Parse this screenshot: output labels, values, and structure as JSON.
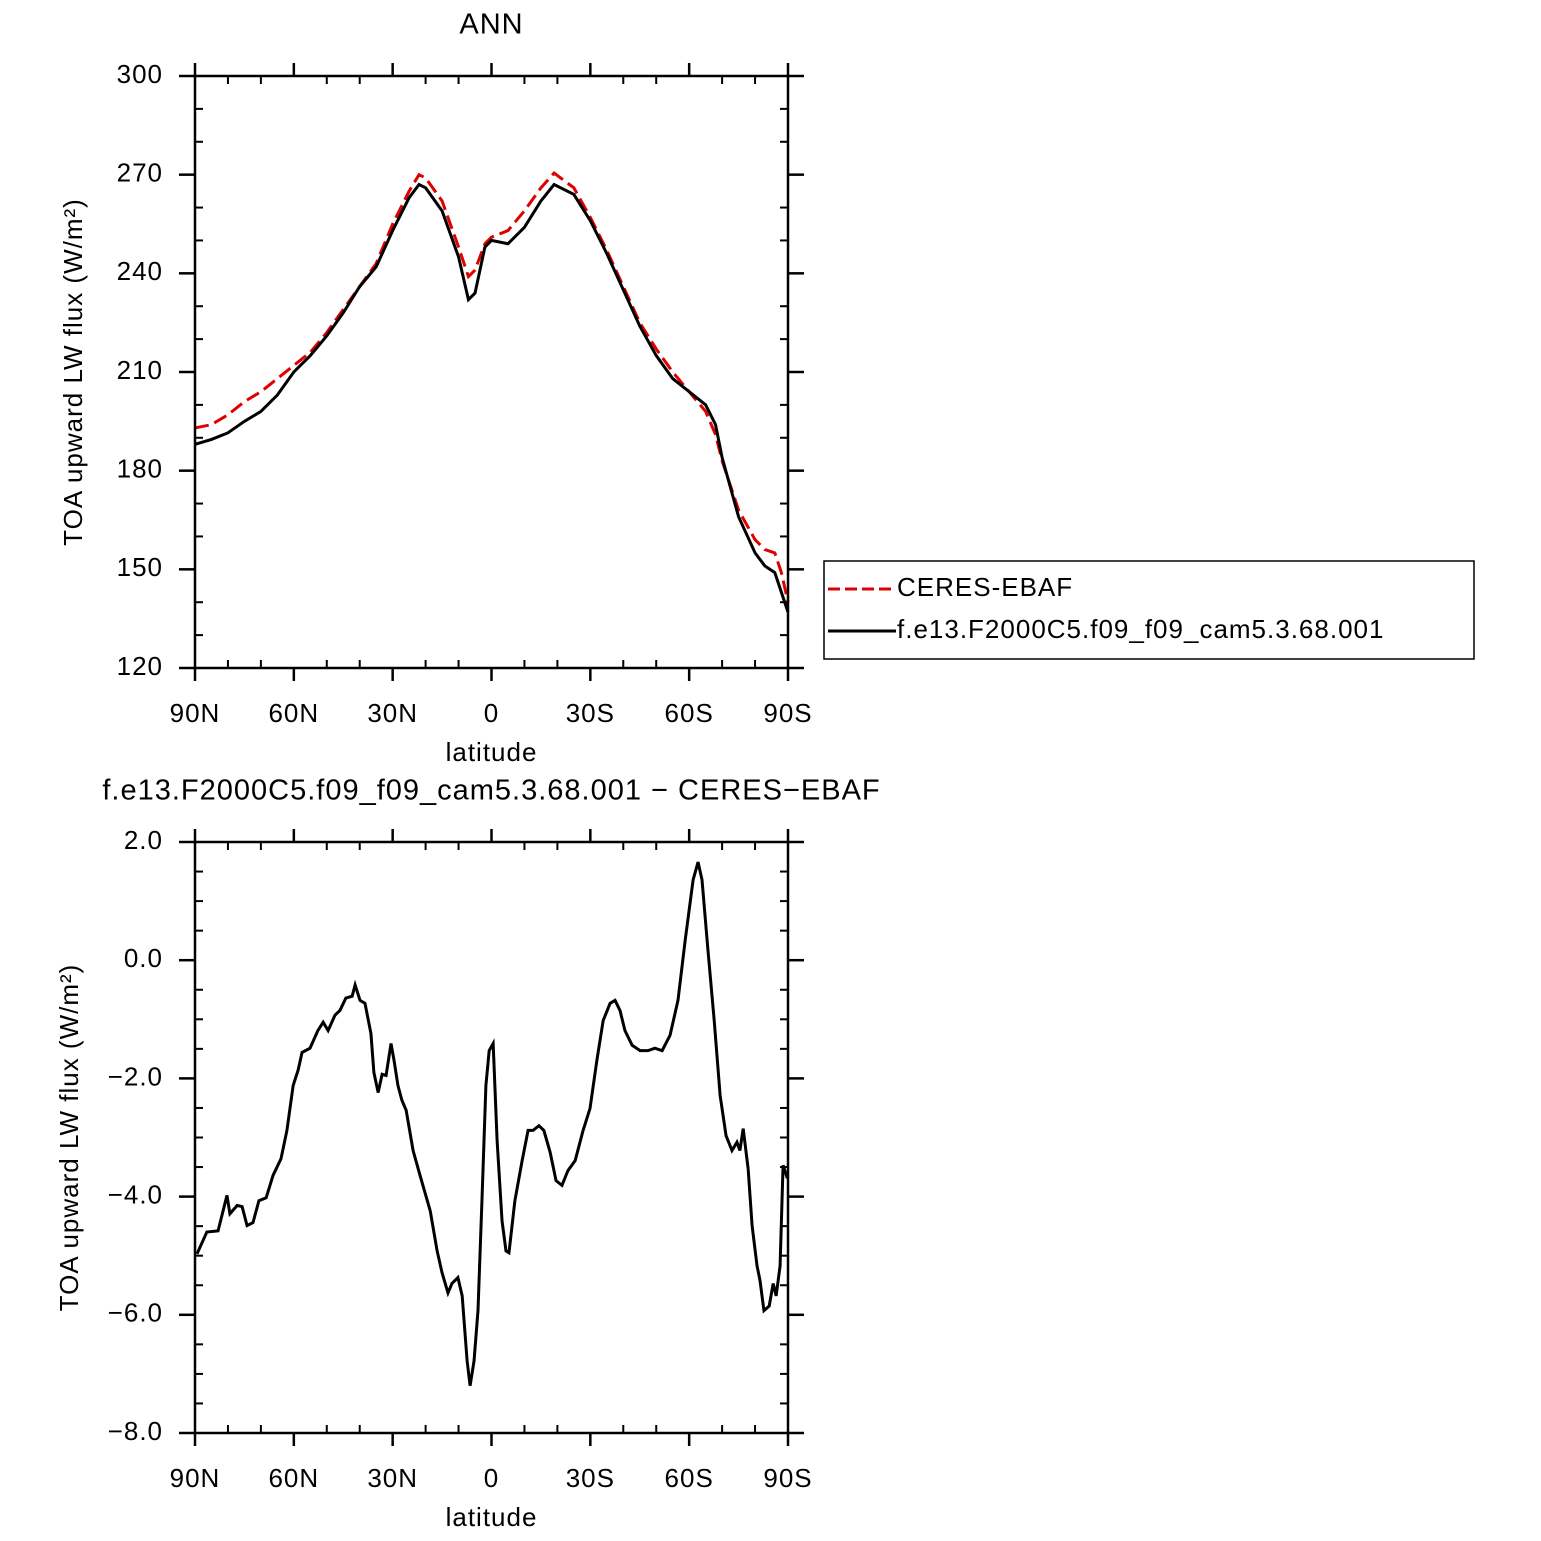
{
  "chart_data": [
    {
      "type": "line",
      "title": "ANN",
      "x_label": "latitude",
      "y_label": "TOA upward LW flux (W/m²)",
      "x": [
        90,
        85,
        80,
        75,
        70,
        65,
        60,
        55,
        50,
        45,
        40,
        35,
        30,
        25,
        22,
        20,
        15,
        10,
        7,
        5,
        2,
        0,
        -5,
        -10,
        -15,
        -19,
        -25,
        -30,
        -35,
        -40,
        -45,
        -50,
        -55,
        -60,
        -65,
        -68,
        -70,
        -75,
        -80,
        -83,
        -86,
        -88,
        -90
      ],
      "series": [
        {
          "name": "CERES-EBAF",
          "color": "#e00000",
          "line_style": "dashed",
          "values": [
            193,
            194,
            197,
            201,
            204,
            208,
            212,
            216,
            222,
            229,
            236,
            243,
            255,
            265,
            270,
            269,
            262,
            248,
            239,
            241,
            249,
            251,
            253,
            259,
            266,
            270.5,
            266,
            257,
            247,
            236,
            225,
            217,
            210,
            204,
            198,
            191,
            183,
            168,
            159,
            156,
            155,
            149,
            140
          ]
        },
        {
          "name": "f.e13.F2000C5.f09_f09_cam5.3.68.001",
          "color": "#000000",
          "line_style": "solid",
          "values": [
            188,
            189.5,
            191.5,
            195,
            198,
            203,
            210,
            215,
            221,
            228,
            236,
            242,
            253,
            263,
            267,
            266,
            259,
            245,
            232,
            234,
            248,
            250,
            249,
            254,
            262,
            267,
            264,
            256,
            246,
            235,
            224,
            215,
            208,
            204,
            200,
            194,
            184,
            166,
            155,
            151,
            149,
            143,
            137
          ]
        }
      ],
      "xlim": [
        90,
        -90
      ],
      "ylim": [
        120,
        300
      ],
      "xticks": [
        {
          "value": 90,
          "label": "90N"
        },
        {
          "value": 60,
          "label": "60N"
        },
        {
          "value": 30,
          "label": "30N"
        },
        0,
        {
          "value": -30,
          "label": "30S"
        },
        {
          "value": -60,
          "label": "60S"
        },
        {
          "value": -90,
          "label": "90S"
        }
      ],
      "xminorticks": [
        80,
        70,
        50,
        40,
        20,
        10,
        -10,
        -20,
        -40,
        -50,
        -70,
        -80
      ],
      "yticks": [
        120,
        150,
        180,
        210,
        240,
        270,
        300
      ],
      "yminorticks": [
        130,
        140,
        160,
        170,
        190,
        200,
        220,
        230,
        250,
        260,
        280,
        290
      ],
      "legend": "outside-right"
    },
    {
      "type": "line",
      "title": "f.e13.F2000C5.f09_f09_cam5.3.68.001 − CERES−EBAF",
      "x_label": "latitude",
      "y_label": "TOA upward LW flux (W/m²)",
      "x": [
        89.4,
        86.4,
        83,
        80.3,
        79.4,
        77.2,
        75.7,
        74.2,
        72.4,
        70.6,
        68.4,
        66.3,
        63.9,
        62.1,
        60.2,
        58.7,
        57.5,
        55.1,
        52.7,
        51.1,
        49.6,
        47.5,
        46,
        44.2,
        42.3,
        41.4,
        39.9,
        38.4,
        36.6,
        35.7,
        34.4,
        33.2,
        32,
        30.5,
        29.6,
        28.4,
        27.2,
        25.9,
        23.8,
        21.7,
        18.6,
        16.5,
        15,
        13.2,
        12,
        10.2,
        8.9,
        7.4,
        6.5,
        5.3,
        4.1,
        2.9,
        1.7,
        0.7,
        -0.5,
        -1.7,
        -3.2,
        -4.4,
        -5.3,
        -7.1,
        -9.3,
        -11.1,
        -12.6,
        -14.4,
        -15.9,
        -17.8,
        -19.6,
        -21.4,
        -23.2,
        -25.4,
        -27.8,
        -29.9,
        -32,
        -33.9,
        -36,
        -37.5,
        -39,
        -40.5,
        -42.7,
        -45.1,
        -47.5,
        -49.6,
        -51.8,
        -54.2,
        -56.6,
        -58.8,
        -61.2,
        -62.7,
        -63.9,
        -65.7,
        -67.6,
        -69.4,
        -71.2,
        -73,
        -74.5,
        -75.4,
        -76.4,
        -77.9,
        -79.1,
        -80.6,
        -81.5,
        -82.7,
        -84.3,
        -85.5,
        -86.4,
        -87.6,
        -88.5,
        -89.8
      ],
      "series": [
        {
          "color": "#000000",
          "line_style": "solid",
          "values": [
            -4.97,
            -4.6,
            -4.58,
            -3.98,
            -4.29,
            -4.15,
            -4.17,
            -4.49,
            -4.44,
            -4.07,
            -4.02,
            -3.64,
            -3.36,
            -2.88,
            -2.12,
            -1.86,
            -1.56,
            -1.49,
            -1.19,
            -1.05,
            -1.19,
            -0.93,
            -0.85,
            -0.64,
            -0.61,
            -0.42,
            -0.68,
            -0.73,
            -1.24,
            -1.9,
            -2.24,
            -1.93,
            -1.95,
            -1.41,
            -1.69,
            -2.12,
            -2.37,
            -2.54,
            -3.22,
            -3.64,
            -4.24,
            -4.92,
            -5.29,
            -5.63,
            -5.47,
            -5.37,
            -5.68,
            -6.78,
            -7.2,
            -6.78,
            -5.93,
            -4.07,
            -2.12,
            -1.53,
            -1.41,
            -3.05,
            -4.41,
            -4.92,
            -4.95,
            -4.07,
            -3.39,
            -2.88,
            -2.88,
            -2.8,
            -2.88,
            -3.25,
            -3.73,
            -3.81,
            -3.56,
            -3.39,
            -2.88,
            -2.51,
            -1.69,
            -1.02,
            -0.73,
            -0.68,
            -0.85,
            -1.19,
            -1.44,
            -1.53,
            -1.53,
            -1.49,
            -1.53,
            -1.27,
            -0.68,
            0.34,
            1.36,
            1.66,
            1.36,
            0.17,
            -1.02,
            -2.29,
            -2.97,
            -3.22,
            -3.08,
            -3.22,
            -2.85,
            -3.53,
            -4.49,
            -5.17,
            -5.42,
            -5.93,
            -5.85,
            -5.47,
            -5.68,
            -5.17,
            -3.47,
            -3.69
          ]
        }
      ],
      "xlim": [
        90,
        -90
      ],
      "ylim": [
        -8,
        2
      ],
      "xticks": [
        {
          "value": 90,
          "label": "90N"
        },
        {
          "value": 60,
          "label": "60N"
        },
        {
          "value": 30,
          "label": "30N"
        },
        0,
        {
          "value": -30,
          "label": "30S"
        },
        {
          "value": -60,
          "label": "60S"
        },
        {
          "value": -90,
          "label": "90S"
        }
      ],
      "xminorticks": [
        80,
        70,
        50,
        40,
        20,
        10,
        -10,
        -20,
        -40,
        -50,
        -70,
        -80
      ],
      "yticks": [
        {
          "value": 2,
          "label": "2.0"
        },
        {
          "value": 0,
          "label": "0.0"
        },
        {
          "value": -2,
          "label": "−2.0"
        },
        {
          "value": -4,
          "label": "−4.0"
        },
        {
          "value": -6,
          "label": "−6.0"
        },
        {
          "value": -8,
          "label": "−8.0"
        }
      ],
      "yminorticks": [
        1.5,
        1,
        0.5,
        -0.5,
        -1,
        -1.5,
        -2.5,
        -3,
        -3.5,
        -4.5,
        -5,
        -5.5,
        -6.5,
        -7,
        -7.5
      ]
    }
  ]
}
